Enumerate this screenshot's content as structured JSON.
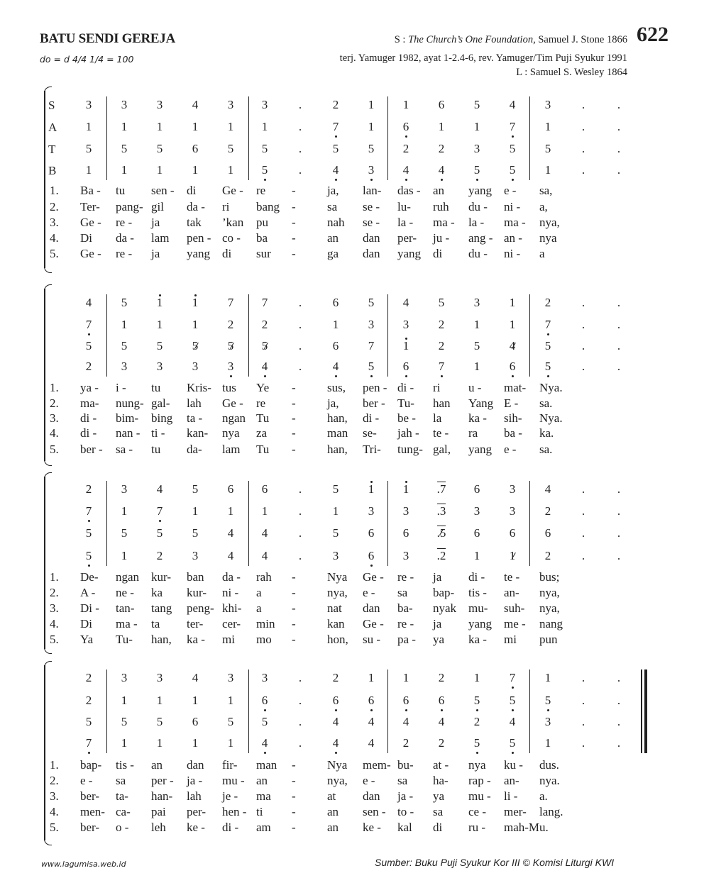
{
  "header": {
    "title": "BATU SENDI GEREJA",
    "tempo": "do = d  4/4    1/4 = 100",
    "source_prefix": "S : ",
    "source_title": "The Church’s One Foundation,",
    "source_author": " Samuel J. Stone 1866",
    "translation": "terj.  Yamuger 1982, ayat 1-2.4-6, rev. Yamuger/Tim Puji Syukur 1991",
    "music": "L : Samuel S. Wesley 1864",
    "number": "622"
  },
  "voice_labels": [
    "S",
    "A",
    "T",
    "B"
  ],
  "verse_numbers": [
    "1.",
    "2.",
    "3.",
    "4.",
    "5."
  ],
  "notation_key": {
    "low_octave": ",",
    "high_octave": "'",
    "raised": "/",
    "beam_over": "^"
  },
  "systems": [
    {
      "notes": [
        [
          "3",
          "3",
          "3",
          "4",
          "3",
          "3",
          ".",
          "2",
          "1",
          "1",
          "6",
          "5",
          "4",
          "3",
          ".",
          "."
        ],
        [
          "1",
          "1",
          "1",
          "1",
          "1",
          "1",
          ".",
          "7,",
          "1",
          "6,",
          "1",
          "1",
          "7,",
          "1",
          ".",
          "."
        ],
        [
          "5",
          "5",
          "5",
          "6",
          "5",
          "5",
          ".",
          "5",
          "5",
          "2",
          "2",
          "3",
          "5",
          "5",
          ".",
          "."
        ],
        [
          "1",
          "1",
          "1",
          "1",
          "1",
          "5,",
          ".",
          "4,",
          "3,",
          "4,",
          "4,",
          "5,",
          "5,",
          "1",
          ".",
          "."
        ]
      ],
      "lyrics": [
        [
          "Ba -",
          "tu",
          "sen -",
          "di",
          "Ge -",
          "re",
          "-",
          "ja,",
          "lan-",
          "das -",
          "an",
          "yang",
          "e -",
          "sa,"
        ],
        [
          "Ter-",
          "pang-",
          "gil",
          "da -",
          "ri",
          "bang",
          "-",
          "sa",
          "se -",
          "lu-",
          "ruh",
          "du -",
          "ni -",
          "a,"
        ],
        [
          "Ge -",
          "re -",
          "ja",
          "tak",
          "’kan",
          "pu",
          "-",
          "nah",
          "se -",
          "la -",
          "ma -",
          "la -",
          "ma -",
          "nya,"
        ],
        [
          "Di",
          "da -",
          "lam",
          "pen -",
          "co -",
          "ba",
          "-",
          "an",
          "dan",
          "per-",
          "ju -",
          "ang -",
          "an -",
          "nya"
        ],
        [
          "Ge -",
          "re -",
          "ja",
          "yang",
          "di",
          "sur",
          "-",
          "ga",
          "dan",
          "yang",
          "di",
          "du -",
          "ni -",
          "a"
        ]
      ]
    },
    {
      "notes": [
        [
          "4",
          "5",
          "1'",
          "1'",
          "7",
          "7",
          ".",
          "6",
          "5",
          "4",
          "5",
          "3",
          "1",
          "2",
          ".",
          "."
        ],
        [
          "7,",
          "1",
          "1",
          "1",
          "2",
          "2",
          ".",
          "1",
          "3",
          "3",
          "2",
          "1",
          "1",
          "7,",
          ".",
          "."
        ],
        [
          "5",
          "5",
          "5",
          "5/",
          "5/",
          "5/",
          ".",
          "6",
          "7",
          "1'",
          "2",
          "5",
          "4/",
          "5",
          ".",
          "."
        ],
        [
          "2",
          "3",
          "3",
          "3",
          "3,",
          "4,",
          ".",
          "4,",
          "5,",
          "6,",
          "7,",
          "1",
          "6,",
          "5,",
          ".",
          "."
        ]
      ],
      "lyrics": [
        [
          "ya -",
          "i -",
          "tu",
          "Kris-",
          "tus",
          "Ye",
          "-",
          "sus,",
          "pen -",
          "di -",
          "ri",
          "u -",
          "mat-",
          "Nya."
        ],
        [
          "ma-",
          "nung-",
          "gal-",
          "lah",
          "Ge -",
          "re",
          "-",
          "ja,",
          "ber -",
          "Tu-",
          "han",
          "Yang",
          "E -",
          "sa."
        ],
        [
          "di -",
          "bim-",
          "bing",
          "ta -",
          "ngan",
          "Tu",
          "-",
          "han,",
          "di -",
          "be -",
          "la",
          "ka -",
          "sih-",
          "Nya."
        ],
        [
          "di -",
          "nan -",
          "ti -",
          "kan-",
          "nya",
          "za",
          "-",
          "man",
          "se-",
          "jah -",
          "te -",
          "ra",
          "ba -",
          "ka."
        ],
        [
          "ber -",
          "sa -",
          "tu",
          "da-",
          "lam",
          "Tu",
          "-",
          "han,",
          "Tri-",
          "tung-",
          "gal,",
          "yang",
          "e -",
          "sa."
        ]
      ]
    },
    {
      "notes": [
        [
          "2",
          "3",
          "4",
          "5",
          "6",
          "6",
          ".",
          "5",
          "1'",
          "1'",
          "^.7",
          "6",
          "3",
          "4",
          ".",
          "."
        ],
        [
          "7,",
          "1",
          "7,",
          "1",
          "1",
          "1",
          ".",
          "1",
          "3",
          "3",
          "^.3",
          "3",
          "3",
          "2",
          ".",
          "."
        ],
        [
          "5",
          "5",
          "5",
          "5",
          "4",
          "4",
          ".",
          "5",
          "6",
          "6",
          "^.5/",
          "6",
          "6",
          "6",
          ".",
          "."
        ],
        [
          "5,",
          "1",
          "2",
          "3",
          "4",
          "4",
          ".",
          "3",
          "6,",
          "3",
          "^.2",
          "1",
          "1/",
          "2",
          ".",
          "."
        ]
      ],
      "lyrics": [
        [
          "De-",
          "ngan",
          "kur-",
          "ban",
          "da -",
          "rah",
          "-",
          "Nya",
          "Ge -",
          "re -",
          "ja",
          "di -",
          "te -",
          "bus;"
        ],
        [
          "A -",
          "ne -",
          "ka",
          "kur-",
          "ni -",
          "a",
          "-",
          "nya,",
          "e -",
          "sa",
          "bap-",
          "tis -",
          "an-",
          "nya,"
        ],
        [
          "Di -",
          "tan-",
          "tang",
          "peng-",
          "khi-",
          "a",
          "-",
          "nat",
          "dan",
          "ba-",
          "nyak",
          "mu-",
          "suh-",
          "nya,"
        ],
        [
          "Di",
          "ma -",
          "ta",
          "ter-",
          "cer-",
          "min",
          "-",
          "kan",
          "Ge -",
          "re -",
          "ja",
          "yang",
          "me -",
          "nang"
        ],
        [
          "Ya",
          "Tu-",
          "han,",
          "ka -",
          "mi",
          "mo",
          "-",
          "hon,",
          "su -",
          "pa -",
          "ya",
          "ka -",
          "mi",
          "pun"
        ]
      ]
    },
    {
      "notes": [
        [
          "2",
          "3",
          "3",
          "4",
          "3",
          "3",
          ".",
          "2",
          "1",
          "1",
          "2",
          "1",
          "7,",
          "1",
          ".",
          "."
        ],
        [
          "2",
          "1",
          "1",
          "1",
          "1",
          "6,",
          ".",
          "6,",
          "6,",
          "6,",
          "6,",
          "5,",
          "5,",
          "5,",
          ".",
          "."
        ],
        [
          "5",
          "5",
          "5",
          "6",
          "5",
          "5",
          ".",
          "4",
          "4",
          "4",
          "4",
          "2",
          "4",
          "3",
          ".",
          "."
        ],
        [
          "7,",
          "1",
          "1",
          "1",
          "1",
          "4,",
          ".",
          "4,",
          "4",
          "2",
          "2",
          "5,",
          "5,",
          "1",
          ".",
          "."
        ]
      ],
      "lyrics": [
        [
          "bap-",
          "tis -",
          "an",
          "dan",
          "fir-",
          "man",
          "-",
          "Nya",
          "mem-",
          "bu-",
          "at -",
          "nya",
          "ku -",
          "dus."
        ],
        [
          "e -",
          "sa",
          "per -",
          "ja -",
          "mu -",
          "an",
          "-",
          "nya,",
          "e -",
          "sa",
          "ha-",
          "rap -",
          "an-",
          "nya."
        ],
        [
          "ber-",
          "ta-",
          "han-",
          "lah",
          "je -",
          "ma",
          "-",
          "at",
          "dan",
          "ja -",
          "ya",
          "mu -",
          "li -",
          "a."
        ],
        [
          "men-",
          "ca-",
          "pai",
          "per-",
          "hen -",
          "ti",
          "-",
          "an",
          "sen -",
          "to -",
          "sa",
          "ce -",
          "mer-",
          "lang."
        ],
        [
          "ber-",
          "o -",
          "leh",
          "ke -",
          "di -",
          "am",
          "-",
          "an",
          "ke -",
          "kal",
          "di",
          "ru -",
          "mah-Mu.",
          ""
        ]
      ]
    }
  ],
  "footer": {
    "website": "www.lagumisa.web.id",
    "source": "Sumber: Buku Puji Syukur Kor III © Komisi Liturgi KWI"
  }
}
